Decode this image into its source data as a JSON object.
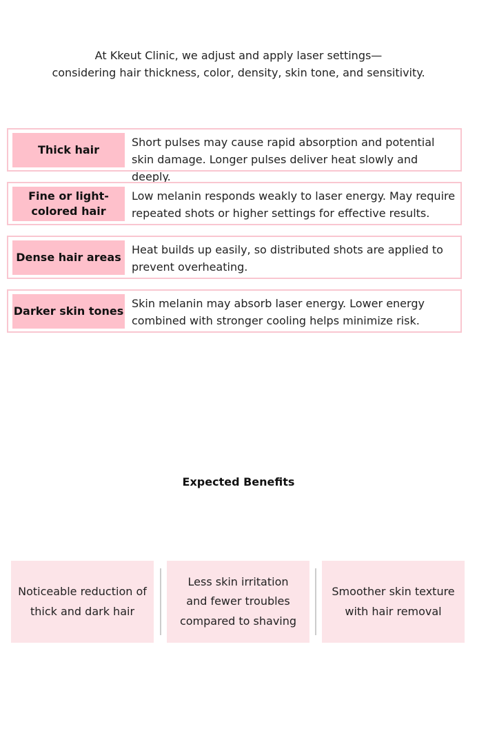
{
  "intro": {
    "line1": "At Kkeut Clinic, we adjust and apply laser settings—",
    "line2": "considering hair thickness, color, density, skin tone, and sensitivity."
  },
  "rows": [
    {
      "label": "Thick hair",
      "text": "Short pulses may cause rapid absorption and potential skin damage. Longer pulses deliver heat slowly and deeply."
    },
    {
      "label": "Fine or light-colored hair",
      "text": "Low melanin responds weakly to laser energy. May require repeated shots or higher settings for effective results."
    },
    {
      "label": "Dense hair areas",
      "text": "Heat builds up easily, so distributed shots are applied to prevent overheating."
    },
    {
      "label": "Darker skin tones",
      "text": "Skin melanin may absorb laser energy. Lower energy combined with stronger cooling helps minimize risk."
    }
  ],
  "benefits": {
    "title": "Expected Benefits",
    "items": [
      "Noticeable reduction of thick and dark hair",
      "Less skin irritation and fewer troubles compared to shaving",
      "Smoother skin texture with hair removal"
    ]
  },
  "colors": {
    "label_bg": "#fec0cb",
    "border": "#f9c6d0",
    "benefit_bg": "#fce4e8"
  }
}
